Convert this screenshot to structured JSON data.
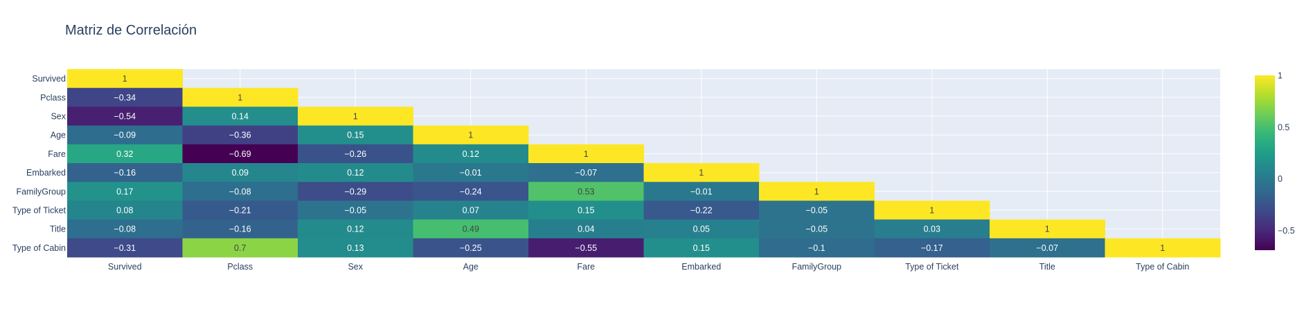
{
  "chart_data": {
    "type": "heatmap",
    "title": "Matriz de Correlación",
    "x_categories": [
      "Survived",
      "Pclass",
      "Sex",
      "Age",
      "Fare",
      "Embarked",
      "FamilyGroup",
      "Type of Ticket",
      "Title",
      "Type of Cabin"
    ],
    "y_categories": [
      "Survived",
      "Pclass",
      "Sex",
      "Age",
      "Fare",
      "Embarked",
      "FamilyGroup",
      "Type of Ticket",
      "Title",
      "Type of Cabin"
    ],
    "values": [
      [
        1
      ],
      [
        -0.34,
        1
      ],
      [
        -0.54,
        0.14,
        1
      ],
      [
        -0.09,
        -0.36,
        0.15,
        1
      ],
      [
        0.32,
        -0.69,
        -0.26,
        0.12,
        1
      ],
      [
        -0.16,
        0.09,
        0.12,
        -0.01,
        -0.07,
        1
      ],
      [
        0.17,
        -0.08,
        -0.29,
        -0.24,
        0.53,
        -0.01,
        1
      ],
      [
        0.08,
        -0.21,
        -0.05,
        0.07,
        0.15,
        -0.22,
        -0.05,
        1
      ],
      [
        -0.08,
        -0.16,
        0.12,
        0.49,
        0.04,
        0.05,
        -0.05,
        0.03,
        1
      ],
      [
        -0.31,
        0.7,
        0.13,
        -0.25,
        -0.55,
        0.15,
        -0.1,
        -0.17,
        -0.07,
        1
      ]
    ],
    "zmin": -0.69,
    "zmax": 1,
    "colorscale": "Viridis",
    "colorbar_ticks": [
      1,
      0.5,
      0,
      -0.5
    ],
    "colorbar_tick_labels": [
      "1",
      "0.5",
      "0",
      "−0.5"
    ],
    "grid": true,
    "plot_background": "#e5ecf6"
  }
}
